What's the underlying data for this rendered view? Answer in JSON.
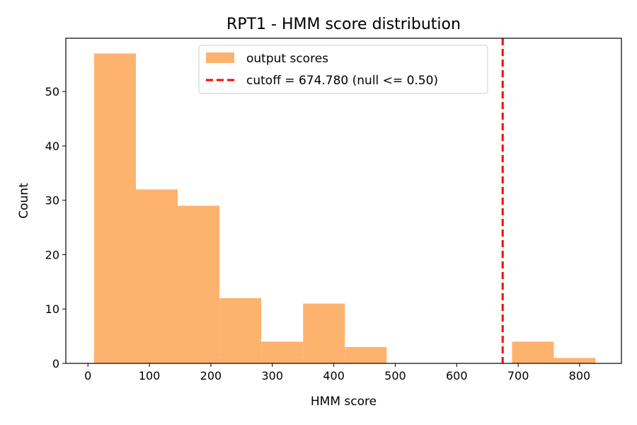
{
  "chart_data": {
    "type": "bar",
    "title": "RPT1 - HMM score distribution",
    "xlabel": "HMM score",
    "ylabel": "Count",
    "xlim": [
      -36,
      868
    ],
    "ylim": [
      0,
      59.8
    ],
    "xticks": [
      0,
      100,
      200,
      300,
      400,
      500,
      600,
      700,
      800
    ],
    "yticks": [
      0,
      10,
      20,
      30,
      40,
      50
    ],
    "bins": [
      {
        "x0": 10,
        "x1": 78,
        "count": 57
      },
      {
        "x0": 78,
        "x1": 146,
        "count": 32
      },
      {
        "x0": 146,
        "x1": 214,
        "count": 29
      },
      {
        "x0": 214,
        "x1": 282,
        "count": 12
      },
      {
        "x0": 282,
        "x1": 350,
        "count": 4
      },
      {
        "x0": 350,
        "x1": 418,
        "count": 11
      },
      {
        "x0": 418,
        "x1": 486,
        "count": 3
      },
      {
        "x0": 486,
        "x1": 554,
        "count": 0
      },
      {
        "x0": 554,
        "x1": 622,
        "count": 0
      },
      {
        "x0": 622,
        "x1": 690,
        "count": 0
      },
      {
        "x0": 690,
        "x1": 758,
        "count": 4
      },
      {
        "x0": 758,
        "x1": 826,
        "count": 1
      }
    ],
    "cutoff": 674.78,
    "series": [
      {
        "name": "output scores",
        "color": "#fdb36e"
      },
      {
        "name": "cutoff = 674.780 (null <= 0.50)",
        "color": "#ff0000",
        "style": "dashed"
      }
    ],
    "legend_position": "top-center",
    "grid": false
  }
}
